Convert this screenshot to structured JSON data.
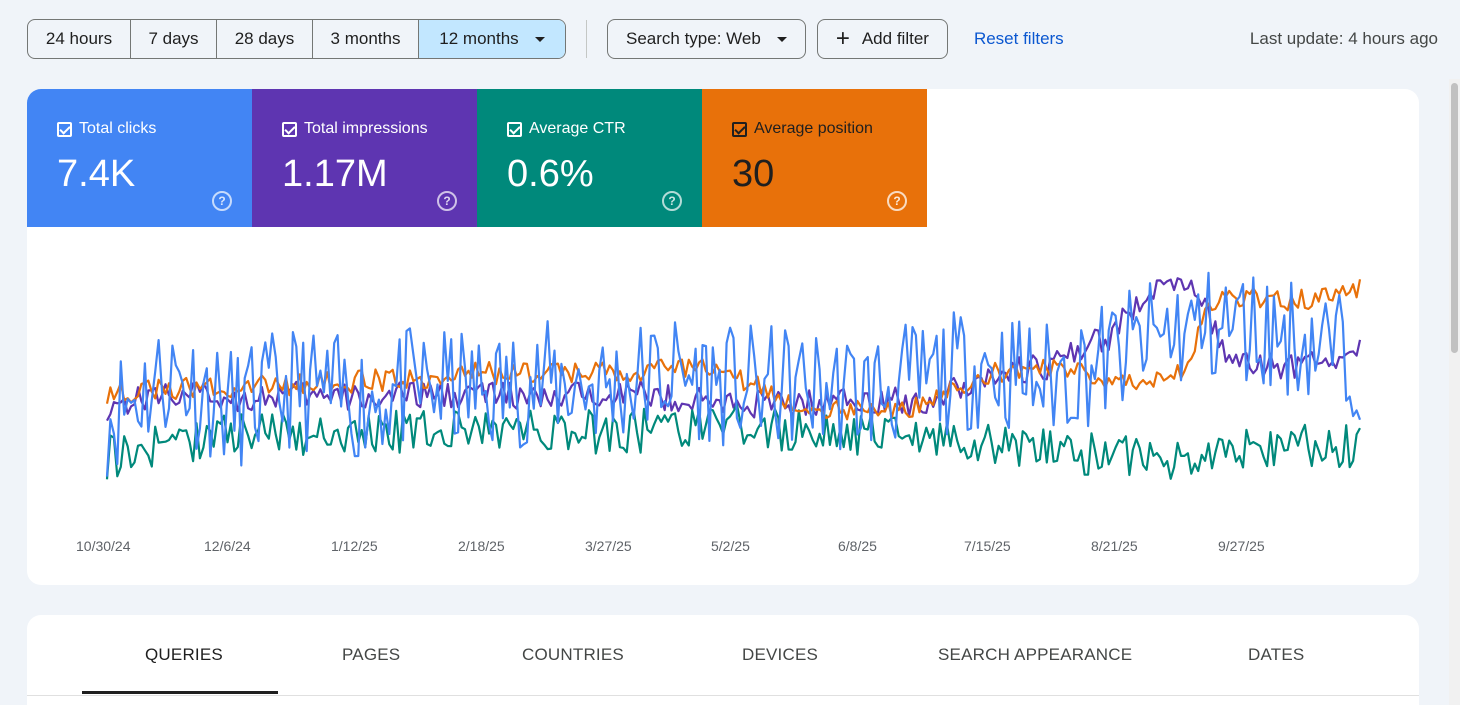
{
  "toolbar": {
    "ranges": [
      {
        "label": "24 hours",
        "active": false
      },
      {
        "label": "7 days",
        "active": false
      },
      {
        "label": "28 days",
        "active": false
      },
      {
        "label": "3 months",
        "active": false
      },
      {
        "label": "12 months",
        "active": true
      }
    ],
    "search_type": "Search type: Web",
    "add_filter": "Add filter",
    "reset_filters": "Reset filters",
    "last_update": "Last update: 4 hours ago"
  },
  "metrics": [
    {
      "label": "Total clicks",
      "value": "7.4K",
      "checked": true,
      "color": "#4285f4"
    },
    {
      "label": "Total impressions",
      "value": "1.17M",
      "checked": true,
      "color": "#5e35b1"
    },
    {
      "label": "Average CTR",
      "value": "0.6%",
      "checked": true,
      "color": "#00897b"
    },
    {
      "label": "Average position",
      "value": "30",
      "checked": true,
      "color": "#e8710a"
    }
  ],
  "chart_data": {
    "type": "line",
    "x_ticks": [
      "10/30/24",
      "12/6/24",
      "1/12/25",
      "2/18/25",
      "3/27/25",
      "5/2/25",
      "6/8/25",
      "7/15/25",
      "8/21/25",
      "9/27/25"
    ],
    "series": [
      {
        "metric": "Total clicks",
        "color": "#4285f4",
        "anchors": [
          [
            0,
            40
          ],
          [
            5,
            55
          ],
          [
            10,
            42
          ],
          [
            15,
            50
          ],
          [
            20,
            45
          ],
          [
            25,
            50
          ],
          [
            30,
            48
          ],
          [
            35,
            52
          ],
          [
            40,
            50
          ],
          [
            45,
            55
          ],
          [
            50,
            50
          ],
          [
            55,
            50
          ],
          [
            60,
            48
          ],
          [
            65,
            52
          ],
          [
            70,
            58
          ],
          [
            75,
            52
          ],
          [
            80,
            60
          ],
          [
            85,
            70
          ],
          [
            90,
            72
          ],
          [
            95,
            68
          ],
          [
            100,
            60
          ]
        ],
        "noise": 22
      },
      {
        "metric": "Total impressions",
        "color": "#5e35b1",
        "anchors": [
          [
            0,
            43
          ],
          [
            5,
            48
          ],
          [
            10,
            46
          ],
          [
            15,
            47
          ],
          [
            20,
            46
          ],
          [
            25,
            47
          ],
          [
            30,
            48
          ],
          [
            35,
            45
          ],
          [
            40,
            49
          ],
          [
            45,
            46
          ],
          [
            50,
            44
          ],
          [
            55,
            44
          ],
          [
            60,
            46
          ],
          [
            65,
            44
          ],
          [
            70,
            54
          ],
          [
            75,
            57
          ],
          [
            80,
            68
          ],
          [
            84,
            88
          ],
          [
            87,
            83
          ],
          [
            90,
            57
          ],
          [
            95,
            58
          ],
          [
            100,
            62
          ]
        ],
        "noise": 5
      },
      {
        "metric": "Average CTR",
        "color": "#00897b",
        "anchors": [
          [
            0,
            25
          ],
          [
            10,
            34
          ],
          [
            20,
            33
          ],
          [
            30,
            35
          ],
          [
            40,
            34
          ],
          [
            50,
            36
          ],
          [
            60,
            33
          ],
          [
            65,
            32
          ],
          [
            70,
            30
          ],
          [
            75,
            28
          ],
          [
            80,
            25
          ],
          [
            85,
            24
          ],
          [
            90,
            28
          ],
          [
            95,
            30
          ],
          [
            100,
            28
          ]
        ],
        "noise": 8
      },
      {
        "metric": "Average position",
        "color": "#e8710a",
        "anchors": [
          [
            0,
            48
          ],
          [
            10,
            50
          ],
          [
            20,
            52
          ],
          [
            30,
            55
          ],
          [
            40,
            55
          ],
          [
            45,
            57
          ],
          [
            50,
            55
          ],
          [
            53,
            47
          ],
          [
            58,
            42
          ],
          [
            62,
            40
          ],
          [
            66,
            46
          ],
          [
            70,
            54
          ],
          [
            75,
            58
          ],
          [
            80,
            52
          ],
          [
            86,
            55
          ],
          [
            88,
            80
          ],
          [
            90,
            82
          ],
          [
            94,
            81
          ],
          [
            98,
            82
          ],
          [
            100,
            85
          ]
        ],
        "noise": 4
      }
    ]
  },
  "tabs": [
    {
      "label": "QUERIES",
      "active": true
    },
    {
      "label": "PAGES",
      "active": false
    },
    {
      "label": "COUNTRIES",
      "active": false
    },
    {
      "label": "DEVICES",
      "active": false
    },
    {
      "label": "SEARCH APPEARANCE",
      "active": false
    },
    {
      "label": "DATES",
      "active": false
    }
  ]
}
